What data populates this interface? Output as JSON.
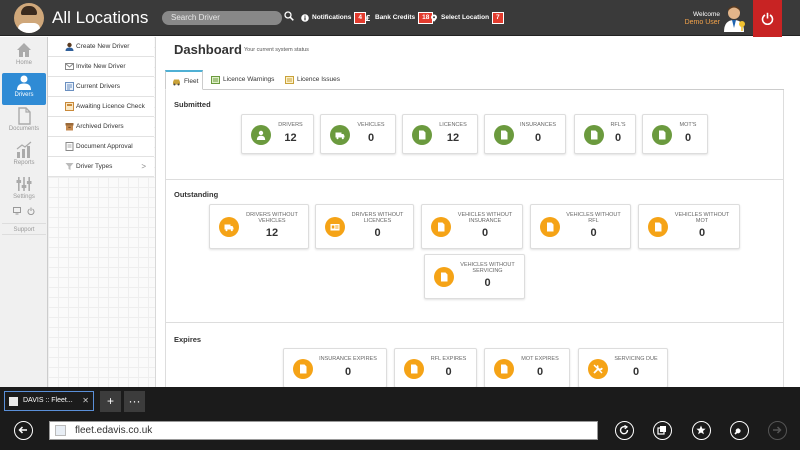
{
  "header": {
    "title": "All Locations",
    "search_placeholder": "Search Driver",
    "notifications": {
      "label": "Notifications",
      "count": "4"
    },
    "bank_credits": {
      "label": "Bank Credits",
      "count": "18"
    },
    "select_location": {
      "label": "Select Location",
      "count": "7"
    },
    "welcome": "Welcome",
    "user": "Demo User"
  },
  "leftnav": [
    {
      "label": "Home",
      "icon": "home-icon"
    },
    {
      "label": "Drivers",
      "icon": "drivers-icon",
      "active": true
    },
    {
      "label": "Documents",
      "icon": "documents-icon"
    },
    {
      "label": "Reports",
      "icon": "reports-icon"
    },
    {
      "label": "Settings",
      "icon": "settings-icon"
    }
  ],
  "support": "Support",
  "submenu": [
    {
      "label": "Create New Driver",
      "icon": "create-driver-icon"
    },
    {
      "label": "Invite New Driver",
      "icon": "invite-driver-icon"
    },
    {
      "label": "Current Drivers",
      "icon": "current-drivers-icon"
    },
    {
      "label": "Awaiting Licence Check",
      "icon": "awaiting-licence-icon"
    },
    {
      "label": "Archived Drivers",
      "icon": "archived-drivers-icon"
    },
    {
      "label": "Document Approval",
      "icon": "document-approval-icon"
    },
    {
      "label": "Driver Types",
      "icon": "driver-types-icon",
      "chevron": ">"
    }
  ],
  "dashboard": {
    "title": "Dashboard",
    "subtitle": "Your current system status",
    "tabs": [
      {
        "label": "Fleet",
        "active": true
      },
      {
        "label": "Licence Warnings"
      },
      {
        "label": "Licence Issues"
      }
    ],
    "submitted": {
      "title": "Submitted",
      "cards": [
        {
          "label": "DRIVERS",
          "value": "12",
          "color": "#6b9a3e"
        },
        {
          "label": "VEHICLES",
          "value": "0",
          "color": "#6b9a3e"
        },
        {
          "label": "LICENCES",
          "value": "12",
          "color": "#6b9a3e"
        },
        {
          "label": "INSURANCES",
          "value": "0",
          "color": "#6b9a3e"
        },
        {
          "label": "RFL'S",
          "value": "0",
          "color": "#6b9a3e"
        },
        {
          "label": "MOT'S",
          "value": "0",
          "color": "#6b9a3e"
        }
      ]
    },
    "outstanding": {
      "title": "Outstanding",
      "cards": [
        {
          "label": "DRIVERS WITHOUT VEHICLES",
          "value": "12",
          "color": "#f5a316"
        },
        {
          "label": "DRIVERS WITHOUT LICENCES",
          "value": "0",
          "color": "#f5a316"
        },
        {
          "label": "VEHICLES WITHOUT INSURANCE",
          "value": "0",
          "color": "#f5a316"
        },
        {
          "label": "VEHICLES WITHOUT RFL",
          "value": "0",
          "color": "#f5a316"
        },
        {
          "label": "VEHICLES WITHOUT MOT",
          "value": "0",
          "color": "#f5a316"
        },
        {
          "label": "VEHICLES WITHOUT SERVICING",
          "value": "0",
          "color": "#f5a316"
        }
      ]
    },
    "expires": {
      "title": "Expires",
      "cards": [
        {
          "label": "INSURANCE EXPIRES",
          "value": "0",
          "color": "#f5a316"
        },
        {
          "label": "RFL EXPIRES",
          "value": "0",
          "color": "#f5a316"
        },
        {
          "label": "MOT EXPIRES",
          "value": "0",
          "color": "#f5a316"
        },
        {
          "label": "SERVICING DUE",
          "value": "0",
          "color": "#f5a316"
        }
      ]
    }
  },
  "browser": {
    "tab_title": "DAVIS :: Fleet...",
    "tab_close": "✕",
    "new_tab": "+",
    "more": "···",
    "url": "fleet.edavis.co.uk"
  },
  "colors": {
    "accent_blue": "#2f8bd5",
    "green": "#6b9a3e",
    "orange": "#f5a316",
    "badge_red": "#e23b2e",
    "power_red": "#c82323"
  }
}
